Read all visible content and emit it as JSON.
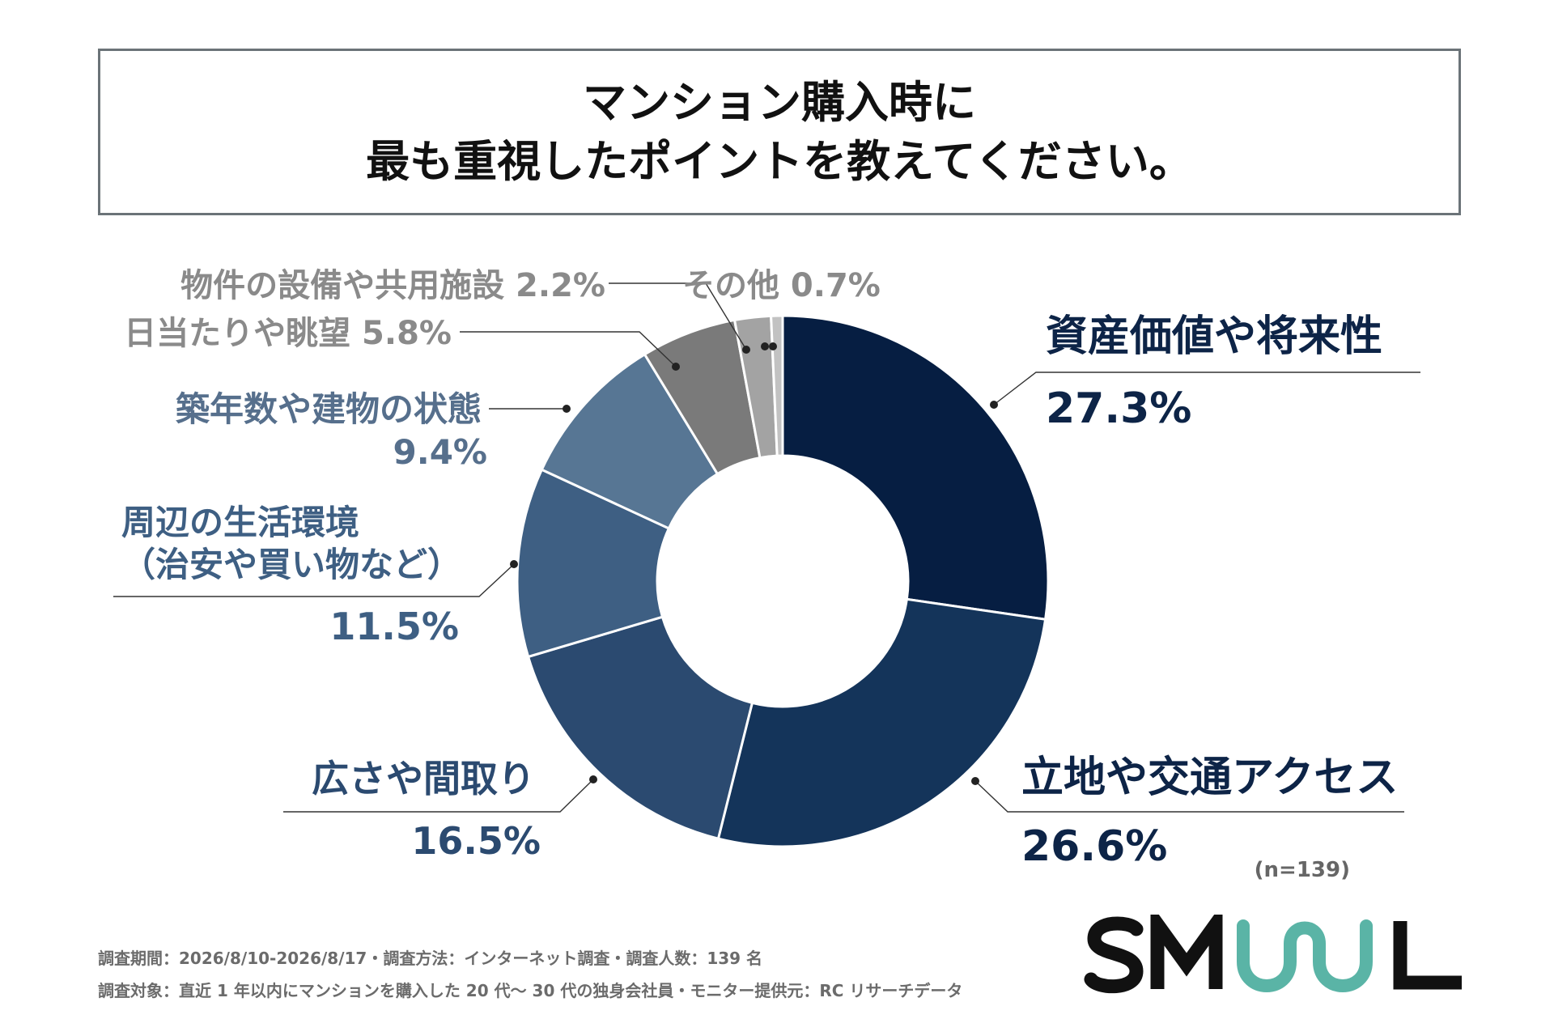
{
  "title": {
    "line1": "マンション購入時に",
    "line2": "最も重視したポイントを教えてください。"
  },
  "chart_data": {
    "type": "pie",
    "series": [
      {
        "label": "資産価値や将来性",
        "value": 27.3,
        "value_label": "27.3%",
        "color": "#061e42"
      },
      {
        "label": "立地や交通アクセス",
        "value": 26.6,
        "value_label": "26.6%",
        "color": "#14345a"
      },
      {
        "label": "広さや間取り",
        "value": 16.5,
        "value_label": "16.5%",
        "color": "#2b4a70"
      },
      {
        "label": "周辺の生活環境\n（治安や買い物など）",
        "value": 11.5,
        "value_label": "11.5%",
        "color": "#3e5f83"
      },
      {
        "label": "築年数や建物の状態",
        "value": 9.4,
        "value_label": "9.4%",
        "color": "#577694"
      },
      {
        "label": "日当たりや眺望",
        "value": 5.8,
        "value_label": "5.8%",
        "color": "#7a7a7a"
      },
      {
        "label": "物件の設備や共用施設",
        "value": 2.2,
        "value_label": "2.2%",
        "color": "#a3a3a3"
      },
      {
        "label": "その他",
        "value": 0.7,
        "value_label": "0.7%",
        "color": "#c2c2c2"
      }
    ],
    "sample_size": "(n=139)"
  },
  "colors": {
    "dark_label": "#0d2447",
    "mid_label": "#566f8c",
    "gray_label": "#8a8a8a",
    "logo_black": "#111111",
    "logo_teal": "#5ab4a6"
  },
  "footer": {
    "line1": "調査期間：2026/8/10-2026/8/17・調査方法：インターネット調査・調査人数：139 名",
    "line2": "調査対象：直近 1 年以内にマンションを購入した 20 代〜 30 代の独身会社員・モニター提供元：RC リサーチデータ"
  },
  "logo": {
    "text": "SMUUL"
  }
}
